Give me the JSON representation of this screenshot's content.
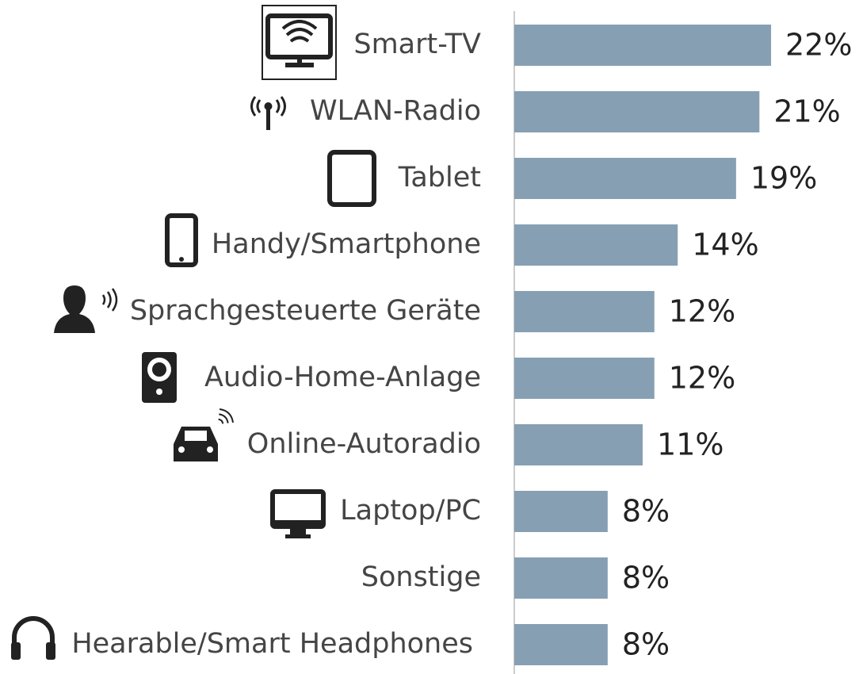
{
  "chart_data": {
    "type": "barh",
    "categories": [
      "Smart-TV",
      "WLAN-Radio",
      "Tablet",
      "Handy/Smartphone",
      "Sprachgesteuerte Geräte",
      "Audio-Home-Anlage",
      "Online-Autoradio",
      "Laptop/PC",
      "Sonstige",
      "Hearable/Smart Headphones"
    ],
    "values": [
      22,
      21,
      19,
      14,
      12,
      12,
      11,
      8,
      8,
      8
    ],
    "value_labels": [
      "22%",
      "21%",
      "19%",
      "14%",
      "12%",
      "12%",
      "11%",
      "8%",
      "8%",
      "8%"
    ],
    "color": "#869fb3"
  }
}
